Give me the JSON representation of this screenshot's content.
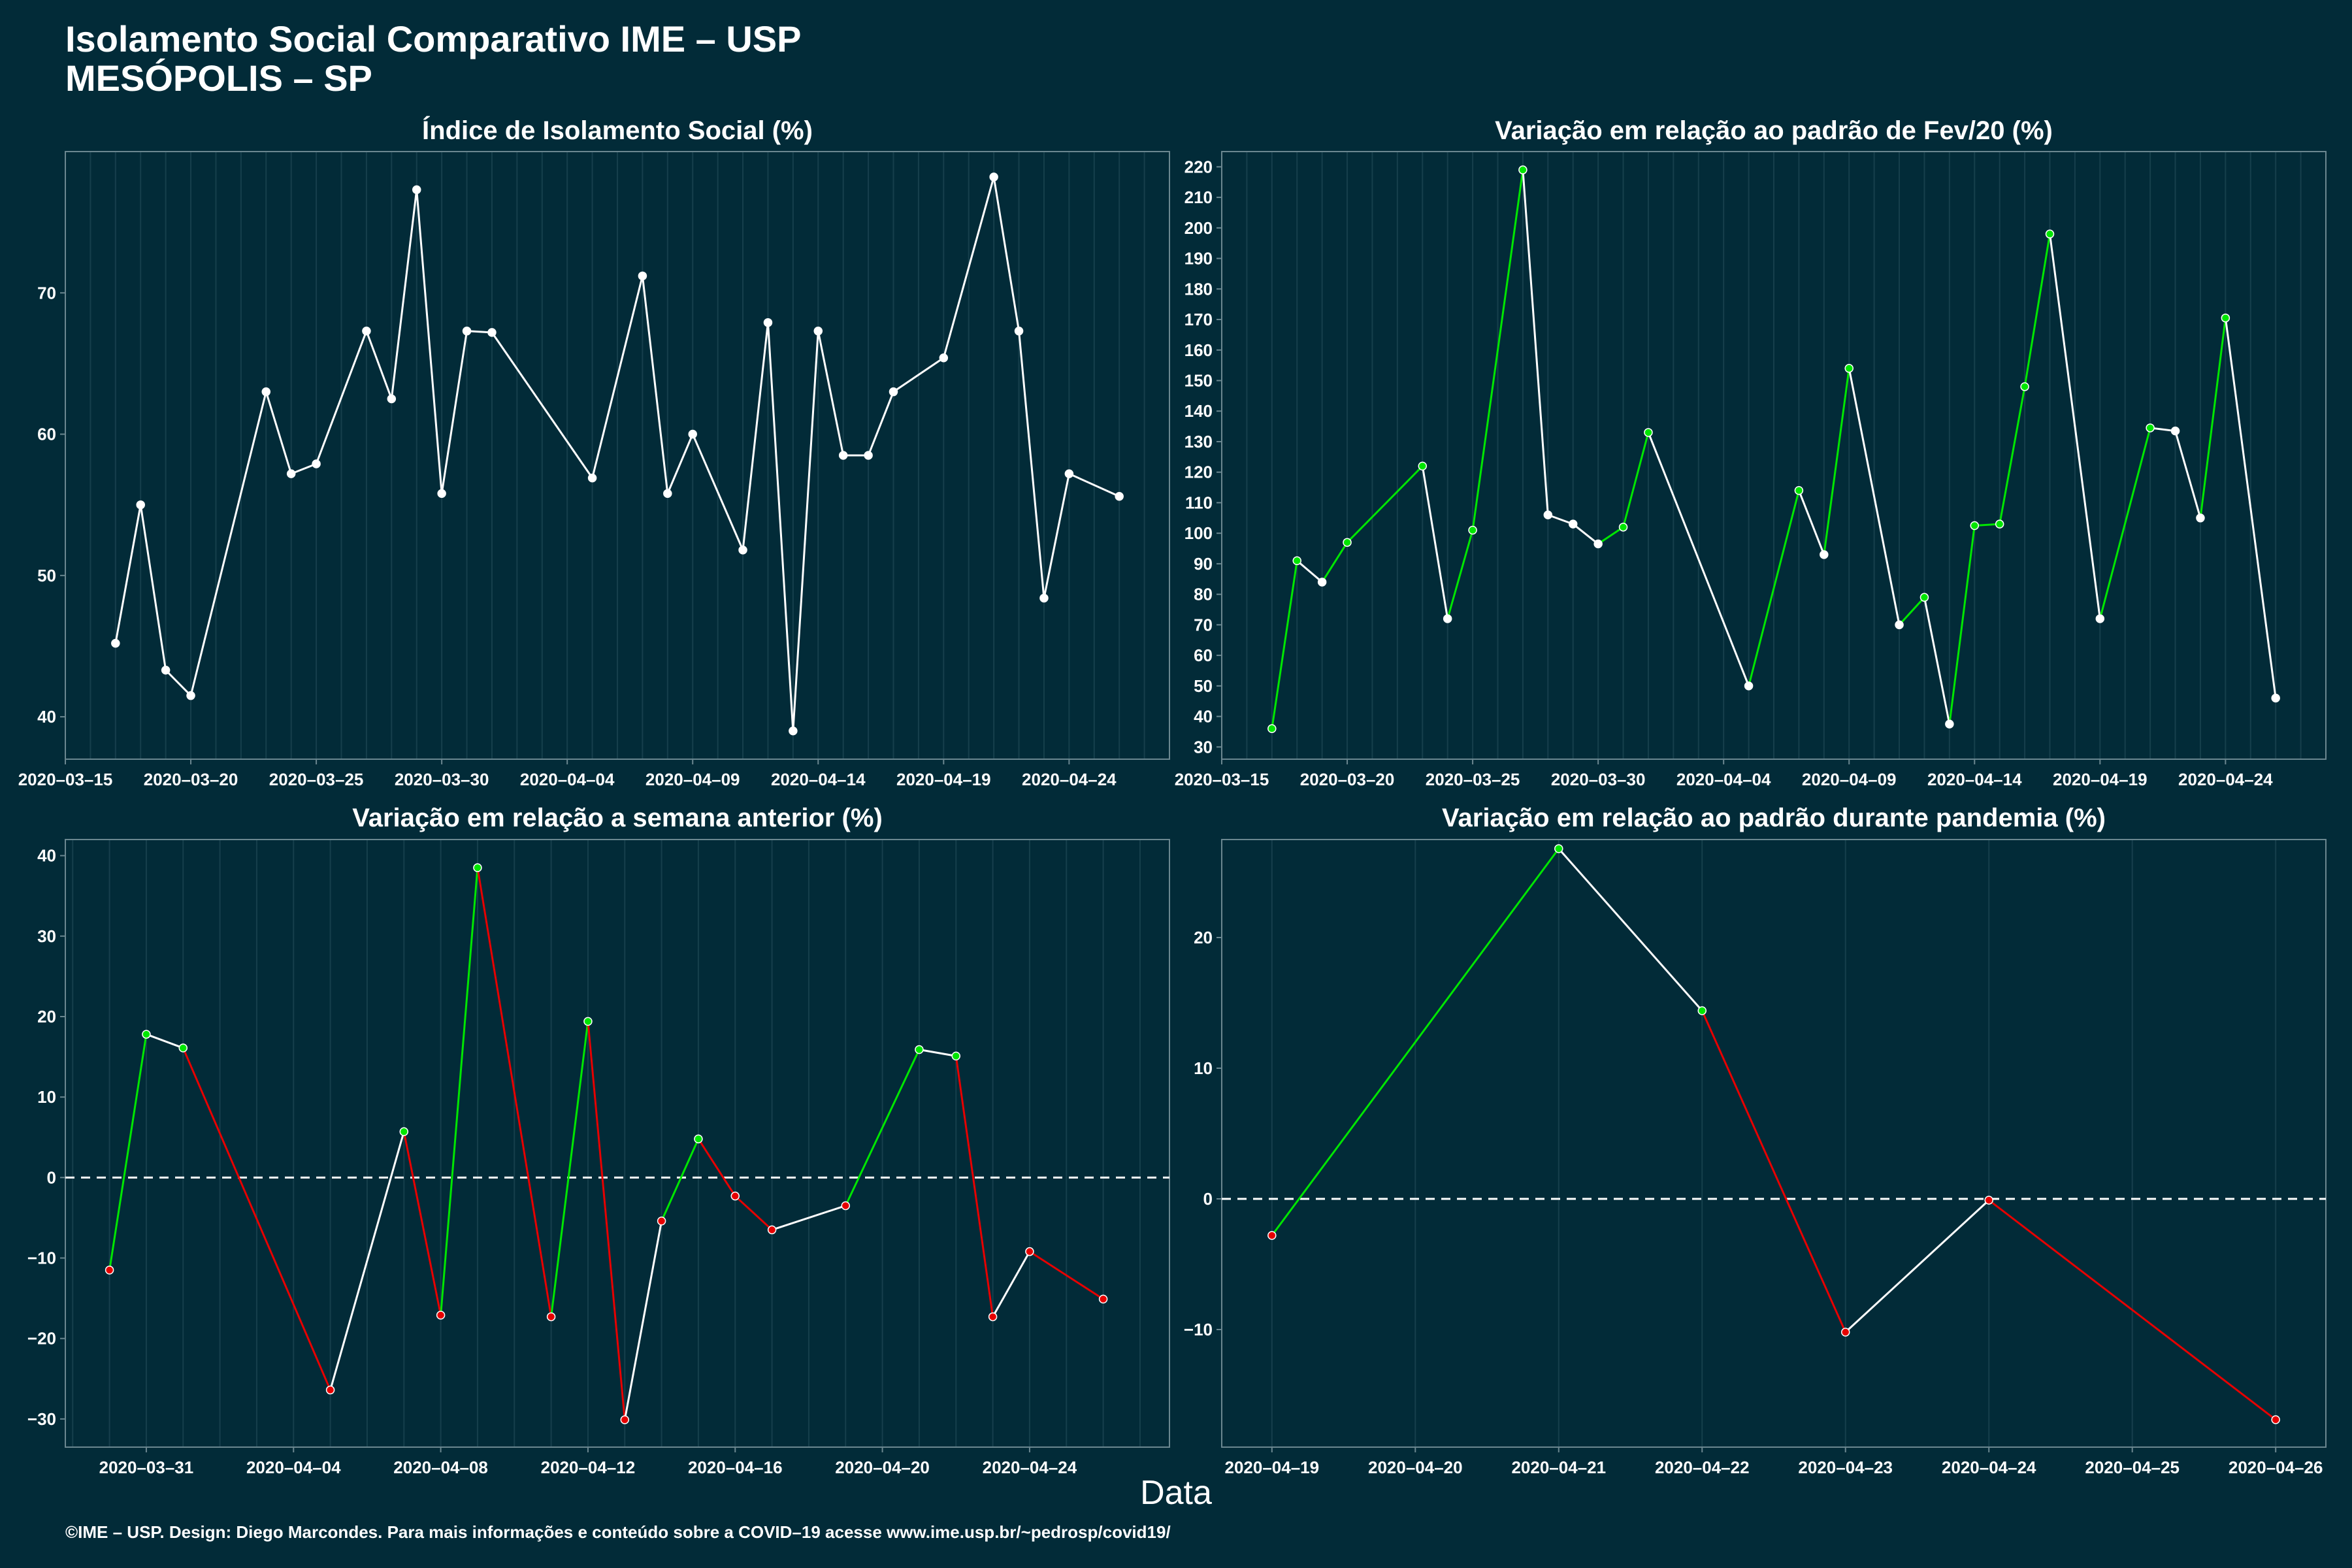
{
  "header": {
    "title_line1": "Isolamento Social Comparativo IME – USP",
    "title_line2": "MESÓPOLIS – SP"
  },
  "xlabel": "Data",
  "caption": "©IME – USP. Design: Diego Marcondes. Para mais informações e conteúdo sobre a COVID–19 acesse www.ime.usp.br/~pedrosp/covid19/",
  "colors": {
    "background": "#022b38",
    "line_neutral": "#ffffff",
    "line_up": "#00e600",
    "line_down": "#e60000",
    "grid": "#163f4c",
    "axis_frame": "#6b8790"
  },
  "chart_data": [
    {
      "id": "isolamento",
      "type": "line",
      "title": "Índice de Isolamento Social (%)",
      "color_mode": "white",
      "zero_line": false,
      "xlim": [
        "2020-03-15",
        "2020-04-28"
      ],
      "ylim": [
        37,
        80
      ],
      "y_ticks": [
        40,
        50,
        60,
        70
      ],
      "x_ticks": [
        "2020-03-15",
        "2020-03-20",
        "2020-03-25",
        "2020-03-30",
        "2020-04-04",
        "2020-04-09",
        "2020-04-14",
        "2020-04-19",
        "2020-04-24"
      ],
      "x": [
        "2020-03-17",
        "2020-03-18",
        "2020-03-19",
        "2020-03-20",
        "2020-03-23",
        "2020-03-24",
        "2020-03-25",
        "2020-03-27",
        "2020-03-28",
        "2020-03-29",
        "2020-03-30",
        "2020-03-31",
        "2020-04-01",
        "2020-04-05",
        "2020-04-07",
        "2020-04-08",
        "2020-04-09",
        "2020-04-11",
        "2020-04-12",
        "2020-04-13",
        "2020-04-14",
        "2020-04-15",
        "2020-04-16",
        "2020-04-17",
        "2020-04-19",
        "2020-04-21",
        "2020-04-22",
        "2020-04-23",
        "2020-04-24",
        "2020-04-26"
      ],
      "y": [
        45.2,
        55.0,
        43.3,
        41.5,
        63.0,
        57.2,
        57.9,
        67.3,
        62.5,
        77.3,
        55.8,
        67.3,
        67.2,
        56.9,
        71.2,
        55.8,
        60.0,
        51.8,
        67.9,
        39.0,
        67.3,
        58.5,
        58.5,
        63.0,
        65.4,
        78.2,
        67.3,
        48.4,
        57.2,
        55.6
      ]
    },
    {
      "id": "fev20",
      "type": "line",
      "title": "Variação em relação ao padrão de Fev/20 (%)",
      "color_mode": "trend_up_green",
      "zero_line": false,
      "xlim": [
        "2020-03-15",
        "2020-04-28"
      ],
      "ylim": [
        26,
        225
      ],
      "y_ticks": [
        30,
        40,
        50,
        60,
        70,
        80,
        90,
        100,
        110,
        120,
        130,
        140,
        150,
        160,
        170,
        180,
        190,
        200,
        210,
        220
      ],
      "x_ticks": [
        "2020-03-15",
        "2020-03-20",
        "2020-03-25",
        "2020-03-30",
        "2020-04-04",
        "2020-04-09",
        "2020-04-14",
        "2020-04-19",
        "2020-04-24"
      ],
      "x": [
        "2020-03-17",
        "2020-03-18",
        "2020-03-19",
        "2020-03-20",
        "2020-03-23",
        "2020-03-24",
        "2020-03-25",
        "2020-03-27",
        "2020-03-28",
        "2020-03-29",
        "2020-03-30",
        "2020-03-31",
        "2020-04-01",
        "2020-04-05",
        "2020-04-07",
        "2020-04-08",
        "2020-04-09",
        "2020-04-11",
        "2020-04-12",
        "2020-04-13",
        "2020-04-14",
        "2020-04-15",
        "2020-04-16",
        "2020-04-17",
        "2020-04-19",
        "2020-04-21",
        "2020-04-22",
        "2020-04-23",
        "2020-04-24",
        "2020-04-26"
      ],
      "y": [
        36,
        91,
        84,
        97,
        122,
        72,
        101,
        219,
        106,
        103,
        96.5,
        102,
        133,
        50,
        114,
        93,
        154,
        70,
        79,
        37.5,
        102.5,
        103,
        148,
        198,
        72,
        134.5,
        133.5,
        105,
        170.5,
        46
      ]
    },
    {
      "id": "semana",
      "type": "line",
      "title": "Variação em relação a semana anterior (%)",
      "color_mode": "trend_both",
      "zero_line": true,
      "xlim": [
        "2020-03-28.8",
        "2020-04-27.8"
      ],
      "ylim": [
        -33.5,
        42
      ],
      "y_ticks": [
        -30,
        -20,
        -10,
        0,
        10,
        20,
        30,
        40
      ],
      "x_ticks": [
        "2020-03-31",
        "2020-04-04",
        "2020-04-08",
        "2020-04-12",
        "2020-04-16",
        "2020-04-20",
        "2020-04-24"
      ],
      "x": [
        "2020-03-30",
        "2020-03-31",
        "2020-04-01",
        "2020-04-05",
        "2020-04-07",
        "2020-04-08",
        "2020-04-09",
        "2020-04-11",
        "2020-04-12",
        "2020-04-13",
        "2020-04-14",
        "2020-04-15",
        "2020-04-16",
        "2020-04-17",
        "2020-04-19",
        "2020-04-21",
        "2020-04-22",
        "2020-04-23",
        "2020-04-24",
        "2020-04-26"
      ],
      "y": [
        -11.5,
        17.8,
        16.1,
        -26.4,
        5.7,
        -17.1,
        38.5,
        -17.3,
        19.4,
        -30.1,
        -5.4,
        4.8,
        -2.3,
        -6.5,
        -3.5,
        15.9,
        15.1,
        -17.3,
        -9.2,
        -15.1
      ]
    },
    {
      "id": "pandemia",
      "type": "line",
      "title": "Variação em relação ao padrão durante pandemia (%)",
      "color_mode": "trend_both",
      "zero_line": true,
      "xlim": [
        "2020-04-18.65",
        "2020-04-26.35"
      ],
      "ylim": [
        -19,
        27.5
      ],
      "y_ticks": [
        -10,
        0,
        10,
        20
      ],
      "x_ticks": [
        "2020-04-19",
        "2020-04-20",
        "2020-04-21",
        "2020-04-22",
        "2020-04-23",
        "2020-04-24",
        "2020-04-25",
        "2020-04-26"
      ],
      "x": [
        "2020-04-19",
        "2020-04-21",
        "2020-04-22",
        "2020-04-23",
        "2020-04-24",
        "2020-04-26"
      ],
      "y": [
        -2.8,
        26.8,
        14.4,
        -10.2,
        -0.1,
        -16.9
      ]
    }
  ]
}
